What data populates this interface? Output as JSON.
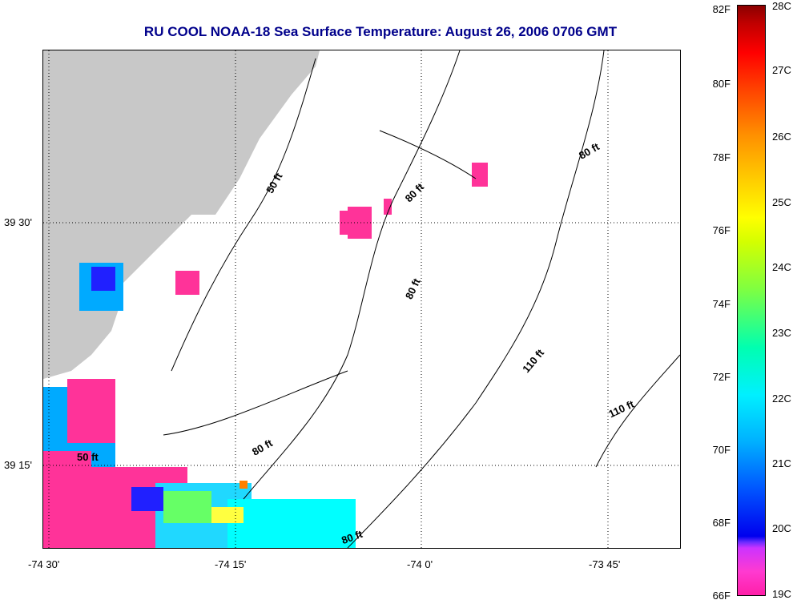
{
  "title": "RU COOL  NOAA-18  Sea Surface Temperature:  August 26, 2006 0706 GMT",
  "axes": {
    "x_labels": [
      "-74 30'",
      "-74 15'",
      "-74 0'",
      "-73 45'"
    ],
    "y_labels": [
      "39 30'",
      "39 15'"
    ]
  },
  "contours": {
    "labels": [
      "50 ft",
      "80 ft",
      "80 ft",
      "80 ft",
      "110 ft",
      "110 ft",
      "50 ft",
      "80 ft",
      "80 ft"
    ]
  },
  "colorbar": {
    "fahrenheit": [
      "82F",
      "80F",
      "78F",
      "76F",
      "74F",
      "72F",
      "70F",
      "68F",
      "66F"
    ],
    "celsius": [
      "28C",
      "27C",
      "26C",
      "25C",
      "24C",
      "23C",
      "22C",
      "21C",
      "20C",
      "19C"
    ]
  },
  "colors": {
    "title": "#00008b",
    "land": "#c8c8c8",
    "pink": "#ff3399"
  }
}
